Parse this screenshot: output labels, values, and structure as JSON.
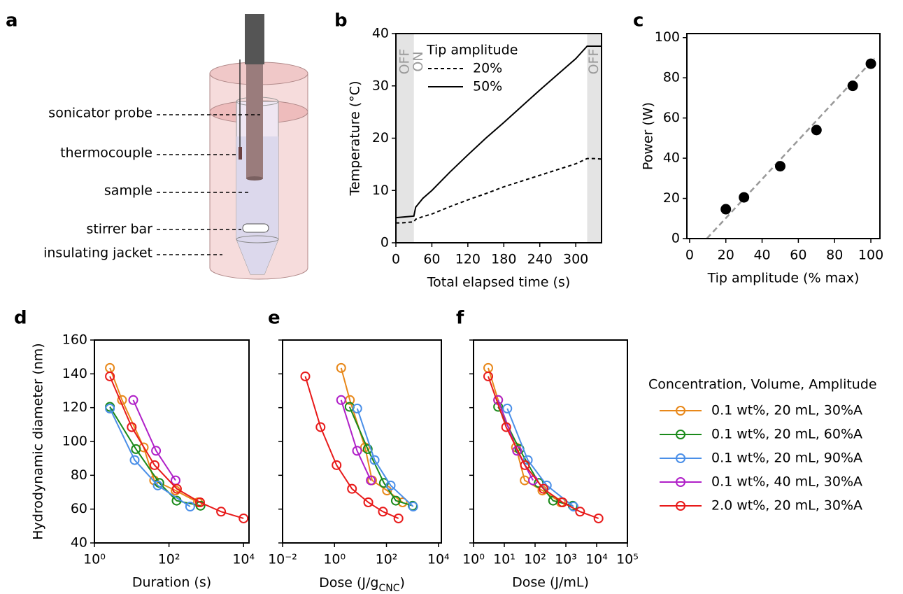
{
  "diagram": {
    "panel": "a",
    "labels": [
      "sonicator probe",
      "thermocouple",
      "sample",
      "stirrer bar",
      "insulating jacket"
    ]
  },
  "chart_data": [
    {
      "type": "line",
      "panel": "b",
      "xlabel": "Total elapsed time (s)",
      "ylabel": "Temperature (°C)",
      "x": [
        0,
        10,
        20,
        30,
        33,
        45,
        60,
        90,
        120,
        150,
        180,
        210,
        240,
        270,
        300,
        319,
        330,
        343
      ],
      "series": [
        {
          "name": "20%",
          "color": "#000000",
          "dash": true,
          "values": [
            3.8,
            3.8,
            3.9,
            4.0,
            4.5,
            5.0,
            5.5,
            6.9,
            8.2,
            9.4,
            10.7,
            11.8,
            12.9,
            14.0,
            15.1,
            16.1,
            16.1,
            16.0
          ]
        },
        {
          "name": "50%",
          "color": "#000000",
          "dash": false,
          "values": [
            4.8,
            4.9,
            5.0,
            5.1,
            6.8,
            8.5,
            10.0,
            13.5,
            16.8,
            20.0,
            23.0,
            26.1,
            29.2,
            32.2,
            35.2,
            37.6,
            37.6,
            37.6
          ]
        }
      ],
      "xlim": [
        0,
        343
      ],
      "ylim": [
        0,
        40
      ],
      "xticks": [
        0,
        60,
        120,
        180,
        240,
        300
      ],
      "yticks": [
        0,
        10,
        20,
        30,
        40
      ],
      "legend_title": "Tip amplitude",
      "legend": "upper left",
      "regions": [
        {
          "xlim": [
            0,
            30
          ],
          "label": "OFF"
        },
        {
          "xlim": [
            319,
            343
          ],
          "label": "OFF"
        }
      ],
      "annotations": [
        {
          "text": "ON",
          "x": 38
        }
      ]
    },
    {
      "type": "scatter",
      "panel": "c",
      "xlabel": "Tip amplitude (% max)",
      "ylabel": "Power (W)",
      "x": [
        20,
        30,
        50,
        70,
        90,
        100
      ],
      "values": [
        14.6,
        20.5,
        36,
        54,
        76,
        87
      ],
      "color": "#000000",
      "xlim": [
        -1.5,
        105
      ],
      "ylim": [
        0,
        102
      ],
      "xticks": [
        0,
        20,
        40,
        60,
        80,
        100
      ],
      "yticks": [
        0,
        20,
        40,
        60,
        80,
        100
      ],
      "fit_line": {
        "x": [
          9.5,
          102
        ],
        "values": [
          0,
          89.7
        ],
        "color": "#999999"
      }
    },
    {
      "type": "line",
      "panel": "d",
      "xlabel": "Duration (s)",
      "ylabel": "Hydrodynamic diameter (nm)",
      "log_x": true,
      "xlim": [
        1,
        14000
      ],
      "ylim": [
        40,
        160
      ],
      "xticks": [
        {
          "value": 1,
          "label": "10⁰"
        },
        {
          "value": 100,
          "label": "10²"
        },
        {
          "value": 10000,
          "label": "10⁴"
        }
      ],
      "yticks": [
        40,
        60,
        80,
        100,
        120,
        140,
        160
      ],
      "series": [
        {
          "color": "#e8881a",
          "x": [
            2.6,
            5.5,
            21,
            40,
            150,
            600
          ],
          "values": [
            143.5,
            124.5,
            96.5,
            77,
            71,
            64
          ]
        },
        {
          "color": "#1a8a1a",
          "x": [
            2.6,
            13,
            55,
            160,
            700
          ],
          "values": [
            120.5,
            95.5,
            75.5,
            65,
            62
          ]
        },
        {
          "color": "#4a8fe8",
          "x": [
            2.6,
            12,
            50,
            370
          ],
          "values": [
            119.5,
            89,
            74,
            61.5
          ]
        },
        {
          "color": "#b020c8",
          "x": [
            11,
            45,
            150
          ],
          "values": [
            124.5,
            94.5,
            77
          ]
        },
        {
          "color": "#e81a1a",
          "x": [
            2.6,
            10,
            41,
            163,
            680,
            2500,
            10000
          ],
          "values": [
            138.5,
            108.5,
            86,
            72,
            64,
            58.5,
            54.5
          ]
        }
      ]
    },
    {
      "type": "line",
      "panel": "e",
      "xlabel": [
        "Dose (J/g",
        "CNC",
        ")"
      ],
      "log_x": true,
      "ytick_labels": false,
      "xlim": [
        0.01,
        13000
      ],
      "ylim": [
        40,
        160
      ],
      "xticks": [
        {
          "value": 0.01,
          "label": "10⁻²"
        },
        {
          "value": 1,
          "label": "10⁰"
        },
        {
          "value": 100,
          "label": "10²"
        },
        {
          "value": 10000,
          "label": "10⁴"
        }
      ],
      "yticks": [
        40,
        60,
        80,
        100,
        120,
        140,
        160
      ],
      "series": [
        {
          "color": "#e8881a",
          "x": [
            1.8,
            3.9,
            15,
            28,
            105,
            420
          ],
          "values": [
            143.5,
            124.5,
            96.5,
            77,
            71,
            64
          ]
        },
        {
          "color": "#1a8a1a",
          "x": [
            3.8,
            19,
            80,
            230,
            1020
          ],
          "values": [
            120.5,
            95.5,
            75.5,
            65,
            62
          ]
        },
        {
          "color": "#4a8fe8",
          "x": [
            7.5,
            35,
            145,
            1070
          ],
          "values": [
            119.5,
            89,
            74,
            61.5
          ]
        },
        {
          "color": "#b020c8",
          "x": [
            1.8,
            7.4,
            25
          ],
          "values": [
            124.5,
            94.5,
            77
          ]
        },
        {
          "color": "#e81a1a",
          "x": [
            0.075,
            0.29,
            1.2,
            4.7,
            20,
            73,
            290
          ],
          "values": [
            138.5,
            108.5,
            86,
            72,
            64,
            58.5,
            54.5
          ]
        }
      ]
    },
    {
      "type": "line",
      "panel": "f",
      "xlabel": "Dose (J/mL)",
      "log_x": true,
      "ytick_labels": false,
      "xlim": [
        1,
        100000
      ],
      "ylim": [
        40,
        160
      ],
      "xticks": [
        {
          "value": 1,
          "label": "10⁰"
        },
        {
          "value": 10,
          "label": "10¹"
        },
        {
          "value": 100,
          "label": "10²"
        },
        {
          "value": 1000,
          "label": "10³"
        },
        {
          "value": 10000,
          "label": "10⁴"
        },
        {
          "value": 100000,
          "label": "10⁵"
        }
      ],
      "yticks": [
        40,
        60,
        80,
        100,
        120,
        140,
        160
      ],
      "legend_title": "Concentration, Volume, Amplitude",
      "legend": "outside right",
      "series": [
        {
          "name": "0.1 wt%, 20 mL, 30%A",
          "color": "#e8881a",
          "x": [
            3,
            6.3,
            24,
            46,
            173,
            690
          ],
          "values": [
            143.5,
            124.5,
            96.5,
            77,
            71,
            64
          ]
        },
        {
          "name": "0.1 wt%, 20 mL, 60%A",
          "color": "#1a8a1a",
          "x": [
            6.3,
            31,
            132,
            385,
            1680
          ],
          "values": [
            120.5,
            95.5,
            75.5,
            65,
            62
          ]
        },
        {
          "name": "0.1 wt%, 20 mL, 90%A",
          "color": "#4a8fe8",
          "x": [
            12.5,
            58,
            240,
            1780
          ],
          "values": [
            119.5,
            89,
            74,
            61.5
          ]
        },
        {
          "name": "0.1 wt%, 40 mL, 30%A",
          "color": "#b020c8",
          "x": [
            6.3,
            26,
            86
          ],
          "values": [
            124.5,
            94.5,
            77
          ]
        },
        {
          "name": "2.0 wt%, 20 mL, 30%A",
          "color": "#e81a1a",
          "x": [
            3,
            11.5,
            47,
            188,
            780,
            2900,
            11500
          ],
          "values": [
            138.5,
            108.5,
            86,
            72,
            64,
            58.5,
            54.5
          ]
        }
      ]
    }
  ]
}
